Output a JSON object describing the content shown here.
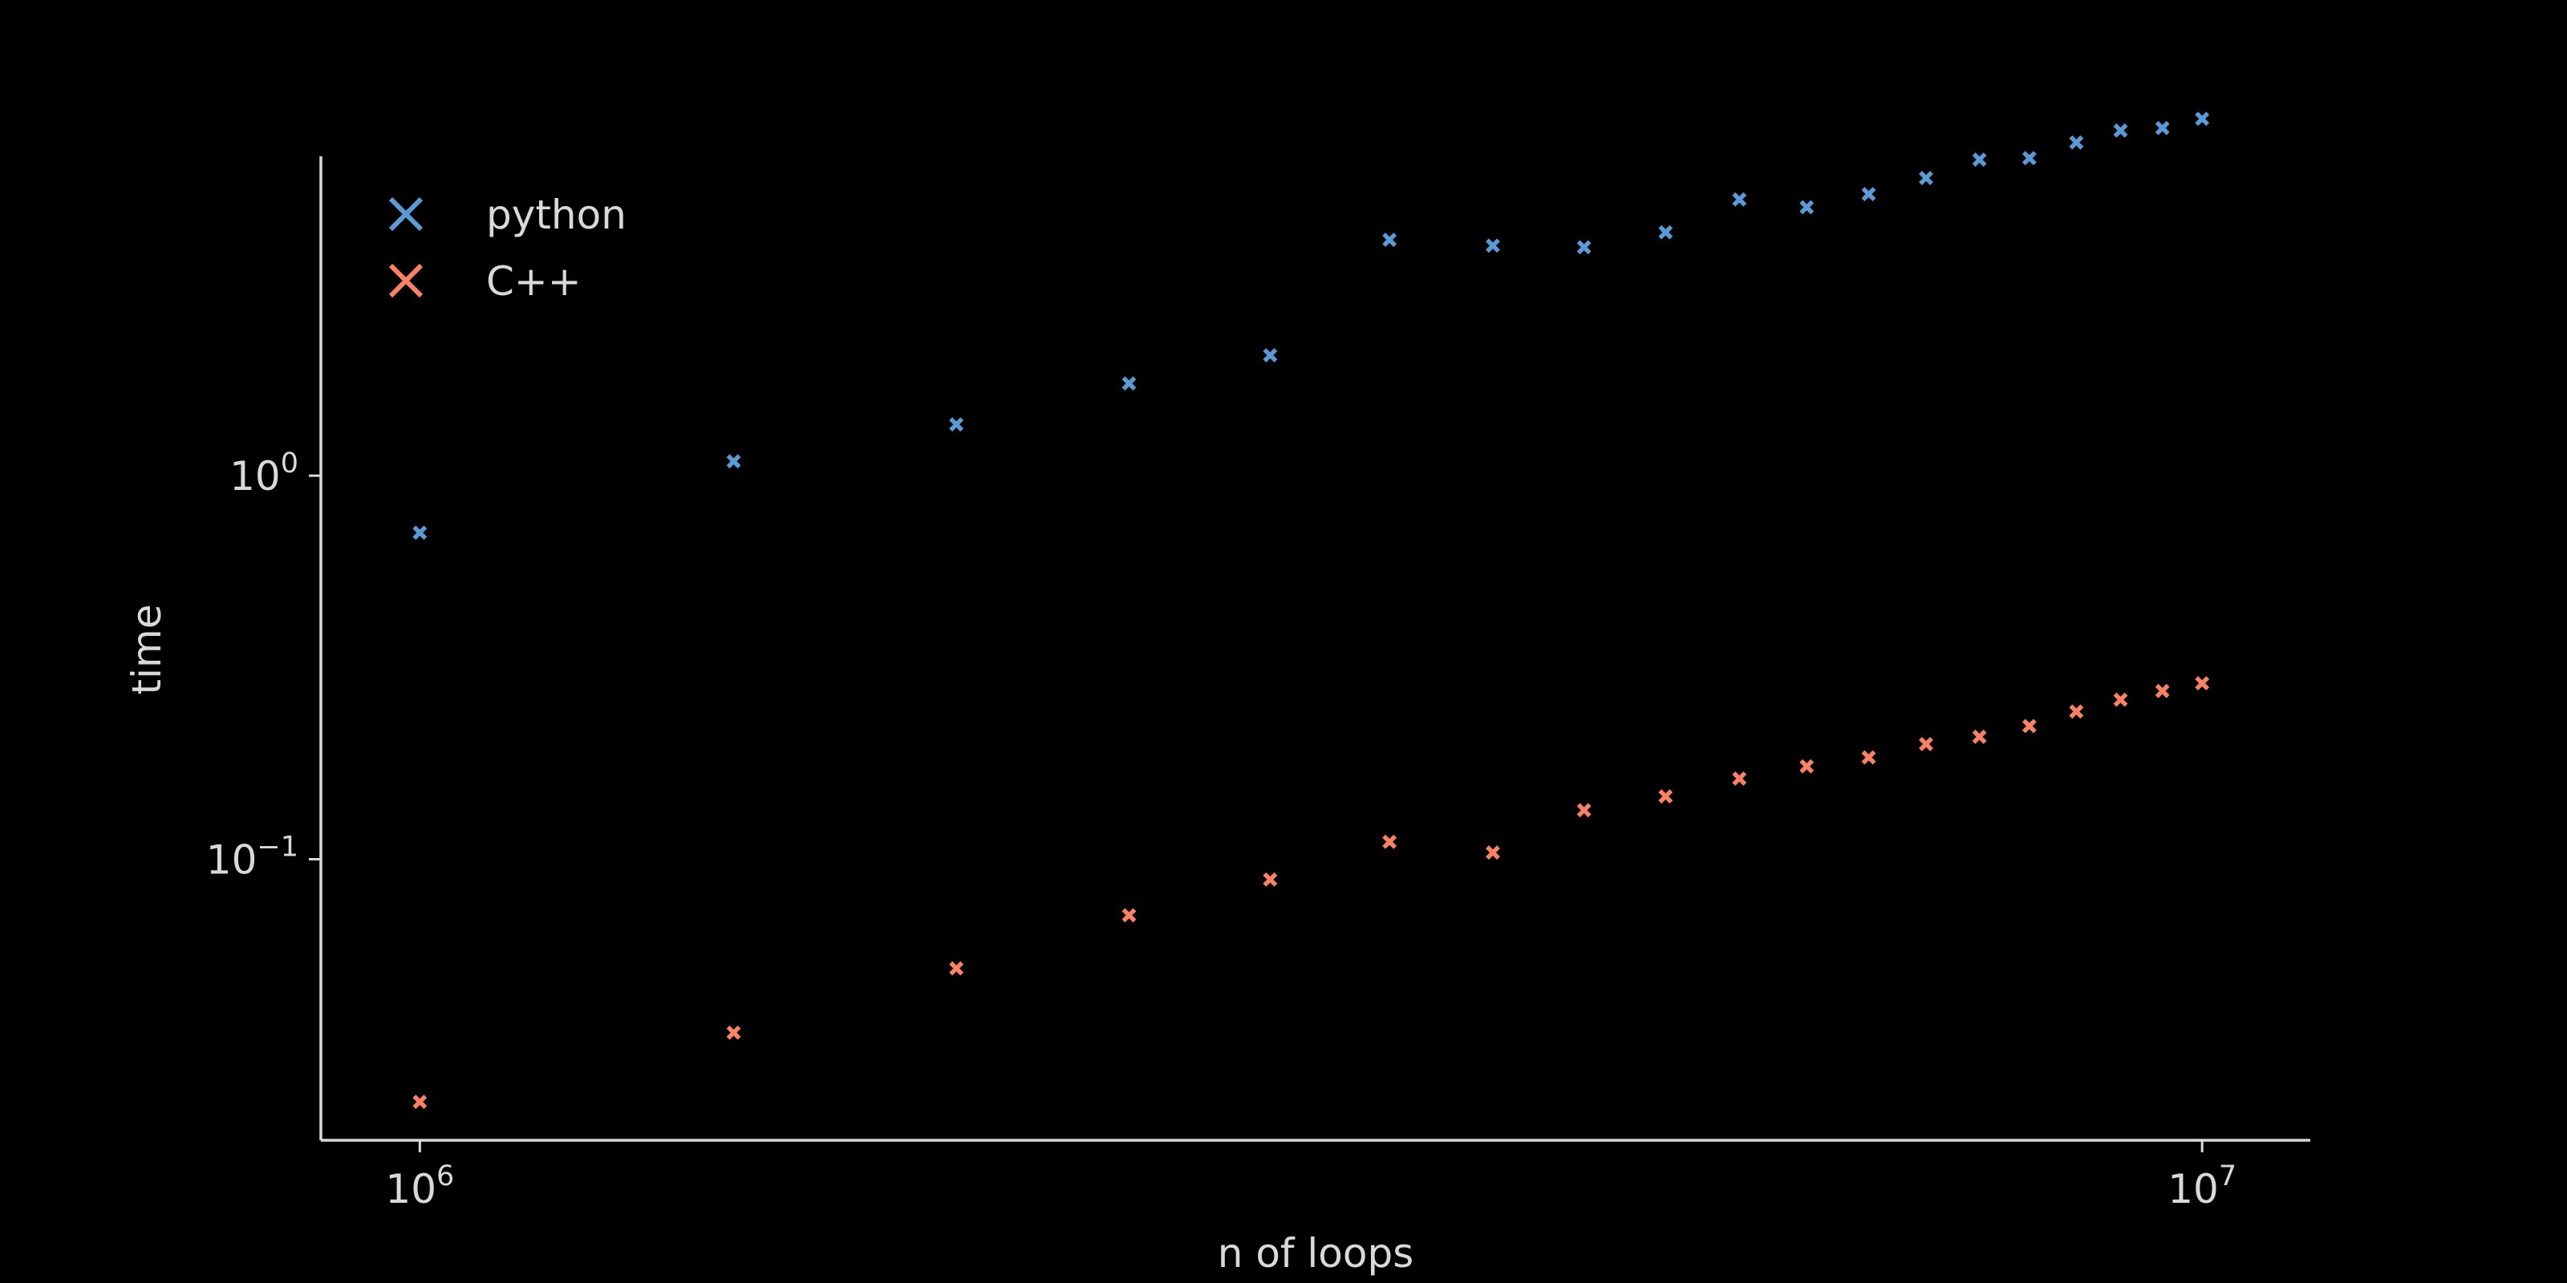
{
  "chart_data": {
    "type": "scatter",
    "title": "",
    "xlabel": "n of loops",
    "ylabel": "time",
    "xscale": "log",
    "yscale": "log",
    "xlim": [
      880000,
      11500000
    ],
    "ylim": [
      0.0185,
      6.8
    ],
    "xticks": [
      {
        "value": 1000000,
        "base": "10",
        "exp": "6"
      },
      {
        "value": 10000000,
        "base": "10",
        "exp": "7"
      }
    ],
    "yticks": [
      {
        "value": 0.1,
        "base": "10",
        "exp": "−1"
      },
      {
        "value": 1,
        "base": "10",
        "exp": "0"
      }
    ],
    "grid": false,
    "legend_position": "top-left",
    "marker": "x",
    "x": [
      1000000,
      1500000,
      2000000,
      2500000,
      3000000,
      3500000,
      4000000,
      4500000,
      5000000,
      5500000,
      6000000,
      6500000,
      7000000,
      7500000,
      8000000,
      8500000,
      9000000,
      9500000,
      10000000
    ],
    "series": [
      {
        "name": "python",
        "color": "#5b9bd5",
        "values": [
          0.71,
          1.09,
          1.36,
          1.74,
          2.06,
          4.12,
          3.98,
          3.94,
          4.31,
          5.25,
          5.01,
          5.42,
          5.97,
          6.67,
          6.73,
          7.39,
          7.94,
          8.06,
          8.52
        ]
      },
      {
        "name": "C++",
        "color": "#fa8264",
        "values": [
          0.0233,
          0.0353,
          0.0519,
          0.0714,
          0.0885,
          0.111,
          0.1041,
          0.1342,
          0.1458,
          0.1623,
          0.1746,
          0.1842,
          0.1996,
          0.2086,
          0.2224,
          0.2427,
          0.2606,
          0.2746,
          0.2876
        ]
      }
    ]
  }
}
